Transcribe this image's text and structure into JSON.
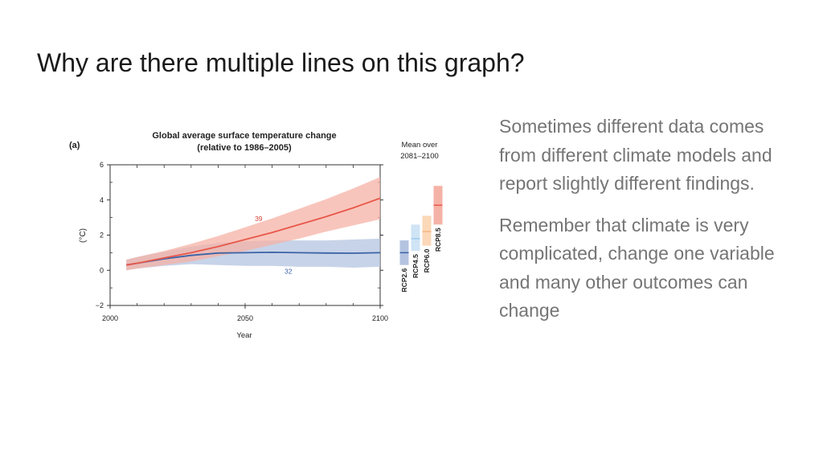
{
  "slide": {
    "title": "Why are there multiple lines on this graph?",
    "paragraphs": [
      "Sometimes different data comes from different climate models and report slightly different findings.",
      "Remember that climate is very complicated, change one variable and many other outcomes can change"
    ]
  },
  "colors": {
    "rcp85": "#e8584a",
    "rcp85_band": "#f5b2a6",
    "rcp26": "#3c63a6",
    "rcp26_band": "#b4c4e0",
    "rcp45": "#9ecae9",
    "rcp60": "#f7b47c"
  },
  "chart_data": {
    "type": "line",
    "panel_label": "(a)",
    "title": "Global average surface temperature change",
    "subtitle": "(relative to 1986–2005)",
    "xlabel": "Year",
    "ylabel": "(°C)",
    "xlim": [
      2000,
      2100
    ],
    "ylim": [
      -2,
      6
    ],
    "x_ticks": [
      2000,
      2050,
      2100
    ],
    "y_ticks": [
      -2,
      0,
      2,
      4,
      6
    ],
    "grid": false,
    "series": [
      {
        "key": "rcp85",
        "model_count": "39",
        "x": [
          2006,
          2010,
          2020,
          2030,
          2040,
          2050,
          2060,
          2070,
          2080,
          2090,
          2100
        ],
        "y": [
          0.3,
          0.4,
          0.7,
          1.0,
          1.35,
          1.75,
          2.15,
          2.6,
          3.05,
          3.55,
          4.1
        ],
        "low": [
          0.0,
          0.1,
          0.3,
          0.5,
          0.8,
          1.1,
          1.45,
          1.8,
          2.2,
          2.55,
          2.9
        ],
        "high": [
          0.6,
          0.75,
          1.1,
          1.5,
          1.95,
          2.45,
          2.95,
          3.5,
          4.05,
          4.65,
          5.3
        ]
      },
      {
        "key": "rcp26",
        "model_count": "32",
        "x": [
          2006,
          2010,
          2020,
          2030,
          2040,
          2050,
          2060,
          2070,
          2080,
          2090,
          2100
        ],
        "y": [
          0.3,
          0.4,
          0.65,
          0.85,
          0.98,
          1.0,
          1.02,
          1.0,
          0.98,
          0.97,
          1.0
        ],
        "low": [
          0.0,
          0.1,
          0.25,
          0.35,
          0.3,
          0.25,
          0.25,
          0.2,
          0.2,
          0.15,
          0.2
        ],
        "high": [
          0.6,
          0.75,
          1.05,
          1.35,
          1.55,
          1.65,
          1.7,
          1.7,
          1.7,
          1.75,
          1.8
        ]
      }
    ],
    "side_panel": {
      "label_line1": "Mean over",
      "label_line2": "2081–2100",
      "bars": [
        {
          "key": "rcp26",
          "name": "RCP2.6",
          "mean": 1.0,
          "low": 0.3,
          "high": 1.7
        },
        {
          "key": "rcp45",
          "name": "RCP4.5",
          "mean": 1.8,
          "low": 1.1,
          "high": 2.6
        },
        {
          "key": "rcp60",
          "name": "RCP6.0",
          "mean": 2.2,
          "low": 1.4,
          "high": 3.1
        },
        {
          "key": "rcp85",
          "name": "RCP8.5",
          "mean": 3.7,
          "low": 2.6,
          "high": 4.8
        }
      ]
    }
  }
}
